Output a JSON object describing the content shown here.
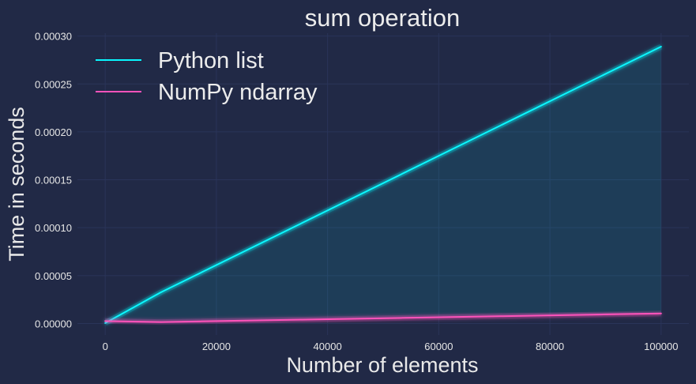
{
  "chart_data": {
    "type": "line",
    "title": "sum operation",
    "xlabel": "Number of elements",
    "ylabel": "Time in seconds",
    "xlim": [
      -5000,
      105000
    ],
    "ylim": [
      -1.2e-05,
      0.000303
    ],
    "xticks": [
      0,
      20000,
      40000,
      60000,
      80000,
      100000
    ],
    "xtick_labels": [
      "0",
      "20000",
      "40000",
      "60000",
      "80000",
      "100000"
    ],
    "yticks": [
      0,
      5e-05,
      0.0001,
      0.00015,
      0.0002,
      0.00025,
      0.0003
    ],
    "ytick_labels": [
      "0.00000",
      "0.00005",
      "0.00010",
      "0.00015",
      "0.00020",
      "0.00025",
      "0.00030"
    ],
    "grid": true,
    "legend_position": "top-left",
    "background_color": "#212946",
    "fill_between": {
      "series": [
        "Python list",
        "NumPy ndarray"
      ],
      "color": "#08f7fe",
      "alpha": 0.1
    },
    "series": [
      {
        "name": "Python list",
        "color": "#08f7fe",
        "x": [
          0,
          10000,
          100000
        ],
        "y": [
          5e-07,
          3.25e-05,
          0.000289
        ]
      },
      {
        "name": "NumPy ndarray",
        "color": "#fe53bb",
        "x": [
          0,
          10000,
          100000
        ],
        "y": [
          2.5e-06,
          1.5e-06,
          1.05e-05
        ]
      }
    ]
  }
}
